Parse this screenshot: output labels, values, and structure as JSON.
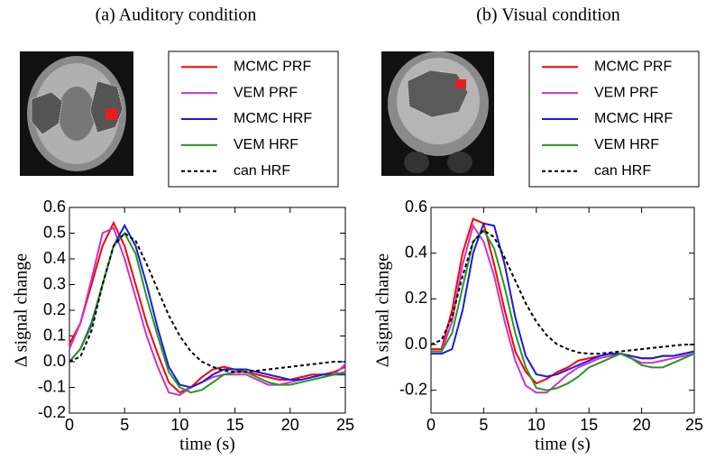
{
  "chart_data": [
    {
      "type": "line",
      "title": "(a) Auditory condition",
      "x_label": "time (s)",
      "y_label": "Δ signal change",
      "x": [
        0,
        1,
        2,
        3,
        4,
        5,
        6,
        7,
        8,
        9,
        10,
        11,
        12,
        13,
        14,
        15,
        16,
        17,
        18,
        19,
        20,
        21,
        22,
        23,
        24,
        25
      ],
      "xlim": [
        0,
        25
      ],
      "xticks": [
        0,
        5,
        10,
        15,
        20,
        25
      ],
      "ylim": [
        -0.2,
        0.6
      ],
      "yticks": [
        -0.2,
        -0.1,
        {
          "value": 0,
          "label": "0.0"
        },
        0.1,
        0.2,
        0.3,
        0.4,
        0.5,
        0.6
      ],
      "series": [
        {
          "name": "MCMC PRF",
          "color": "#ff0000",
          "linestyle": "solid",
          "values": [
            0.07,
            0.15,
            0.3,
            0.45,
            0.54,
            0.45,
            0.3,
            0.15,
            0.03,
            -0.08,
            -0.12,
            -0.1,
            -0.06,
            -0.03,
            -0.02,
            -0.03,
            -0.04,
            -0.05,
            -0.06,
            -0.07,
            -0.07,
            -0.06,
            -0.05,
            -0.05,
            -0.04,
            -0.02
          ]
        },
        {
          "name": "VEM PRF",
          "color": "#cc33cc",
          "linestyle": "solid",
          "values": [
            0.05,
            0.15,
            0.32,
            0.5,
            0.52,
            0.4,
            0.25,
            0.1,
            -0.02,
            -0.12,
            -0.13,
            -0.1,
            -0.08,
            -0.06,
            -0.05,
            -0.05,
            -0.05,
            -0.07,
            -0.09,
            -0.09,
            -0.08,
            -0.07,
            -0.06,
            -0.05,
            -0.05,
            -0.01
          ]
        },
        {
          "name": "MCMC HRF",
          "color": "#1a1ae6",
          "linestyle": "solid",
          "values": [
            0,
            0.05,
            0.15,
            0.3,
            0.45,
            0.53,
            0.45,
            0.3,
            0.13,
            -0.02,
            -0.09,
            -0.1,
            -0.08,
            -0.05,
            -0.03,
            -0.03,
            -0.03,
            -0.04,
            -0.05,
            -0.06,
            -0.07,
            -0.07,
            -0.06,
            -0.05,
            -0.05,
            -0.05
          ]
        },
        {
          "name": "VEM HRF",
          "color": "#229922",
          "linestyle": "solid",
          "values": [
            0,
            0.05,
            0.14,
            0.3,
            0.45,
            0.5,
            0.42,
            0.25,
            0.1,
            -0.04,
            -0.1,
            -0.12,
            -0.11,
            -0.08,
            -0.05,
            -0.04,
            -0.04,
            -0.06,
            -0.08,
            -0.09,
            -0.09,
            -0.08,
            -0.07,
            -0.06,
            -0.05,
            -0.04
          ]
        },
        {
          "name": "can HRF",
          "color": "#000000",
          "linestyle": "dashed",
          "values": [
            0,
            0.02,
            0.12,
            0.3,
            0.45,
            0.5,
            0.47,
            0.38,
            0.28,
            0.18,
            0.1,
            0.04,
            0,
            -0.02,
            -0.035,
            -0.04,
            -0.04,
            -0.035,
            -0.03,
            -0.025,
            -0.02,
            -0.015,
            -0.01,
            -0.005,
            0,
            0
          ]
        }
      ]
    },
    {
      "type": "line",
      "title": "(b) Visual condition",
      "x_label": "time (s)",
      "y_label": "Δ signal change",
      "x": [
        0,
        1,
        2,
        3,
        4,
        5,
        6,
        7,
        8,
        9,
        10,
        11,
        12,
        13,
        14,
        15,
        16,
        17,
        18,
        19,
        20,
        21,
        22,
        23,
        24,
        25
      ],
      "xlim": [
        0,
        25
      ],
      "xticks": [
        0,
        5,
        10,
        15,
        20,
        25
      ],
      "ylim": [
        -0.3,
        0.6
      ],
      "yticks": [
        -0.2,
        {
          "value": 0,
          "label": "0.0"
        },
        0.2,
        0.4,
        0.6
      ],
      "series": [
        {
          "name": "MCMC PRF",
          "color": "#ff0000",
          "linestyle": "solid",
          "values": [
            -0.02,
            -0.02,
            0.15,
            0.4,
            0.55,
            0.53,
            0.35,
            0.15,
            -0.03,
            -0.12,
            -0.17,
            -0.15,
            -0.12,
            -0.1,
            -0.07,
            -0.06,
            -0.05,
            -0.04,
            -0.04,
            -0.05,
            -0.06,
            -0.06,
            -0.05,
            -0.05,
            -0.04,
            -0.03
          ]
        },
        {
          "name": "VEM PRF",
          "color": "#cc33cc",
          "linestyle": "solid",
          "values": [
            -0.03,
            -0.03,
            0.1,
            0.35,
            0.52,
            0.45,
            0.3,
            0.1,
            -0.07,
            -0.18,
            -0.21,
            -0.21,
            -0.17,
            -0.13,
            -0.1,
            -0.08,
            -0.06,
            -0.05,
            -0.04,
            -0.06,
            -0.08,
            -0.08,
            -0.07,
            -0.06,
            -0.05,
            -0.04
          ]
        },
        {
          "name": "MCMC HRF",
          "color": "#1a1ae6",
          "linestyle": "solid",
          "values": [
            -0.04,
            -0.04,
            -0.02,
            0.15,
            0.4,
            0.53,
            0.52,
            0.35,
            0.12,
            -0.05,
            -0.13,
            -0.14,
            -0.13,
            -0.11,
            -0.09,
            -0.07,
            -0.05,
            -0.04,
            -0.04,
            -0.05,
            -0.06,
            -0.06,
            -0.05,
            -0.05,
            -0.04,
            -0.03
          ]
        },
        {
          "name": "VEM HRF",
          "color": "#229922",
          "linestyle": "solid",
          "values": [
            -0.03,
            -0.03,
            0.05,
            0.25,
            0.45,
            0.5,
            0.42,
            0.25,
            0.05,
            -0.1,
            -0.19,
            -0.2,
            -0.19,
            -0.17,
            -0.14,
            -0.1,
            -0.08,
            -0.06,
            -0.04,
            -0.06,
            -0.09,
            -0.1,
            -0.1,
            -0.08,
            -0.06,
            -0.04
          ]
        },
        {
          "name": "can HRF",
          "color": "#000000",
          "linestyle": "dashed",
          "values": [
            0,
            0.02,
            0.12,
            0.3,
            0.45,
            0.5,
            0.47,
            0.38,
            0.28,
            0.18,
            0.1,
            0.04,
            0,
            -0.02,
            -0.035,
            -0.04,
            -0.04,
            -0.035,
            -0.03,
            -0.025,
            -0.02,
            -0.015,
            -0.01,
            -0.005,
            0,
            0
          ]
        }
      ]
    }
  ]
}
